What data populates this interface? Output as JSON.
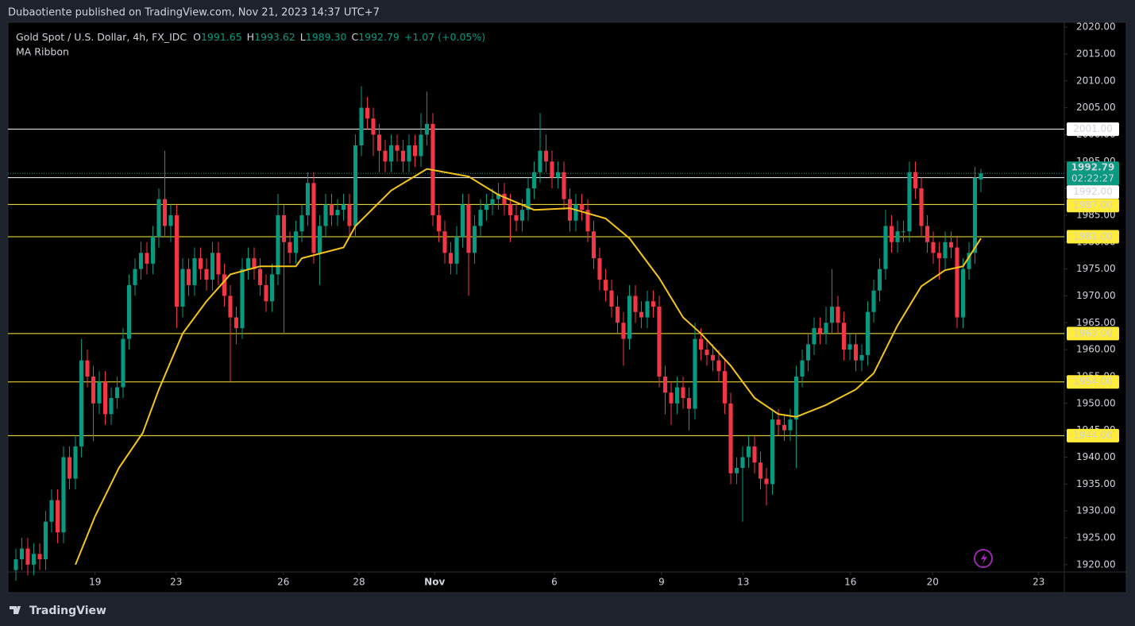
{
  "header": {
    "text": "Dubaotiente published on TradingView.com, Nov 21, 2023 14:37 UTC+7"
  },
  "footer": {
    "brand": "TradingView"
  },
  "chart_data": {
    "type": "candlestick",
    "legend": {
      "symbol": "Gold Spot / U.S. Dollar, 4h, FX_IDC",
      "fields": [
        {
          "label": "O",
          "value": "1991.65"
        },
        {
          "label": "H",
          "value": "1993.62"
        },
        {
          "label": "L",
          "value": "1989.30"
        },
        {
          "label": "C",
          "value": "1992.79"
        }
      ],
      "change": "+1.07 (+0.05%)"
    },
    "up_color": "#089981",
    "down_color": "#f23645",
    "open": [
      1919,
      1921,
      1923,
      1920,
      1922,
      1921,
      1928,
      1932,
      1926,
      1940,
      1936,
      1942,
      1958,
      1955,
      1950,
      1954,
      1948,
      1951,
      1953,
      1962,
      1972,
      1975,
      1978,
      1976,
      1981,
      1988,
      1983,
      1985,
      1968,
      1975,
      1972,
      1977,
      1975,
      1973,
      1978,
      1974,
      1970,
      1966,
      1964,
      1975,
      1977,
      1975,
      1972,
      1969,
      1974,
      1985,
      1980,
      1978,
      1982,
      1985,
      1991,
      1978,
      1983,
      1987,
      1985,
      1986,
      1987,
      1983,
      1998,
      2005,
      2003,
      2000,
      1997,
      1995,
      1998,
      1997,
      1995,
      1998,
      1996,
      2000,
      2002,
      1985,
      1982,
      1978,
      1976,
      1981,
      1987,
      1978,
      1983,
      1986,
      1987,
      1988,
      1989,
      1987,
      1985,
      1984,
      1986,
      1990,
      1993,
      1997,
      1995,
      1992,
      1993,
      1988,
      1984,
      1987,
      1986,
      1982,
      1977,
      1973,
      1971,
      1968,
      1965,
      1962,
      1970,
      1967,
      1966,
      1969,
      1968,
      1955,
      1952,
      1950,
      1953,
      1951,
      1949,
      1962,
      1960,
      1959,
      1958,
      1956,
      1950,
      1937,
      1938,
      1940,
      1942,
      1939,
      1936,
      1935,
      1947,
      1946,
      1945,
      1947,
      1955,
      1958,
      1961,
      1964,
      1963,
      1965,
      1968,
      1965,
      1960,
      1961,
      1958,
      1959,
      1967,
      1971,
      1975,
      1983,
      1980,
      1982,
      1982,
      1993,
      1990,
      1983,
      1980,
      1978,
      1977,
      1980,
      1979,
      1966,
      1975,
      1978,
      1991.65
    ],
    "high": [
      1923,
      1925,
      1925,
      1924,
      1924,
      1930,
      1934,
      1934,
      1942,
      1942,
      1944,
      1962,
      1960,
      1957,
      1956,
      1956,
      1953,
      1955,
      1964,
      1974,
      1977,
      1980,
      1980,
      1983,
      1990,
      1997,
      1987,
      1987,
      1977,
      1977,
      1979,
      1979,
      1977,
      1980,
      1980,
      1976,
      1972,
      1968,
      1977,
      1979,
      1979,
      1977,
      1974,
      1976,
      1989,
      1987,
      1982,
      1984,
      1987,
      1993,
      1993,
      1985,
      1989,
      1989,
      1988,
      1989,
      1989,
      2000,
      2009,
      2007,
      2005,
      2002,
      1999,
      2000,
      2000,
      1999,
      2000,
      2000,
      2004,
      2008,
      2004,
      1987,
      1984,
      1980,
      1983,
      1989,
      1989,
      1985,
      1988,
      1989,
      1990,
      1991,
      1991,
      1989,
      1987,
      1988,
      1992,
      1995,
      2004,
      2000,
      1997,
      1995,
      1995,
      1990,
      1989,
      1989,
      1988,
      1984,
      1979,
      1975,
      1973,
      1970,
      1967,
      1972,
      1972,
      1969,
      1971,
      1971,
      1970,
      1957,
      1954,
      1955,
      1955,
      1953,
      1965,
      1964,
      1962,
      1961,
      1960,
      1958,
      1952,
      1940,
      1942,
      1944,
      1944,
      1941,
      1938,
      1949,
      1949,
      1948,
      1949,
      1957,
      1960,
      1963,
      1966,
      1966,
      1968,
      1975,
      1970,
      1967,
      1963,
      1963,
      1961,
      1969,
      1973,
      1977,
      1986,
      1985,
      1984,
      1984,
      1995,
      1995,
      1992,
      1985,
      1982,
      1980,
      1982,
      1982,
      1981,
      1977,
      1980,
      1994,
      1993.62
    ],
    "low": [
      1917,
      1919,
      1918,
      1918,
      1919,
      1919,
      1926,
      1924,
      1924,
      1934,
      1934,
      1940,
      1953,
      1943,
      1948,
      1946,
      1946,
      1949,
      1951,
      1960,
      1970,
      1973,
      1974,
      1974,
      1979,
      1981,
      1980,
      1964,
      1966,
      1970,
      1970,
      1973,
      1971,
      1971,
      1972,
      1968,
      1954,
      1961,
      1962,
      1973,
      1973,
      1970,
      1967,
      1967,
      1972,
      1963,
      1976,
      1976,
      1980,
      1983,
      1976,
      1972,
      1981,
      1983,
      1983,
      1984,
      1981,
      1981,
      1996,
      2001,
      1996,
      1993,
      1993,
      1993,
      1995,
      1993,
      1993,
      1994,
      1994,
      1998,
      1983,
      1980,
      1976,
      1974,
      1974,
      1979,
      1970,
      1976,
      1981,
      1984,
      1985,
      1986,
      1985,
      1980,
      1982,
      1982,
      1984,
      1988,
      1991,
      1993,
      1990,
      1990,
      1986,
      1982,
      1982,
      1984,
      1980,
      1975,
      1971,
      1969,
      1966,
      1963,
      1957,
      1960,
      1965,
      1964,
      1964,
      1966,
      1953,
      1948,
      1946,
      1948,
      1949,
      1945,
      1947,
      1958,
      1957,
      1956,
      1954,
      1948,
      1935,
      1935,
      1928,
      1938,
      1937,
      1934,
      1931,
      1933,
      1944,
      1943,
      1943,
      1938,
      1953,
      1956,
      1959,
      1961,
      1961,
      1963,
      1963,
      1958,
      1958,
      1956,
      1956,
      1957,
      1965,
      1969,
      1973,
      1978,
      1978,
      1980,
      1980,
      1988,
      1981,
      1978,
      1976,
      1973,
      1975,
      1977,
      1964,
      1964,
      1973,
      1976,
      1989.3
    ],
    "close": [
      1921,
      1923,
      1920,
      1922,
      1921,
      1928,
      1932,
      1926,
      1940,
      1936,
      1942,
      1958,
      1955,
      1950,
      1954,
      1948,
      1951,
      1953,
      1962,
      1972,
      1975,
      1978,
      1976,
      1981,
      1988,
      1983,
      1985,
      1968,
      1975,
      1972,
      1977,
      1975,
      1973,
      1978,
      1974,
      1970,
      1966,
      1964,
      1975,
      1977,
      1975,
      1972,
      1969,
      1974,
      1985,
      1980,
      1978,
      1982,
      1985,
      1991,
      1978,
      1983,
      1987,
      1985,
      1986,
      1987,
      1983,
      1998,
      2005,
      2003,
      2000,
      1997,
      1995,
      1998,
      1997,
      1995,
      1998,
      1996,
      2000,
      2002,
      1985,
      1982,
      1978,
      1976,
      1981,
      1987,
      1978,
      1983,
      1986,
      1987,
      1988,
      1989,
      1987,
      1985,
      1984,
      1986,
      1990,
      1993,
      1997,
      1995,
      1992,
      1993,
      1988,
      1984,
      1987,
      1986,
      1982,
      1977,
      1973,
      1971,
      1968,
      1965,
      1962,
      1970,
      1967,
      1966,
      1969,
      1968,
      1955,
      1952,
      1950,
      1953,
      1951,
      1949,
      1962,
      1960,
      1959,
      1958,
      1956,
      1950,
      1937,
      1938,
      1940,
      1942,
      1939,
      1936,
      1935,
      1947,
      1946,
      1945,
      1947,
      1955,
      1958,
      1961,
      1964,
      1963,
      1965,
      1968,
      1965,
      1960,
      1961,
      1958,
      1959,
      1967,
      1971,
      1975,
      1983,
      1980,
      1982,
      1982,
      1993,
      1990,
      1983,
      1980,
      1978,
      1977,
      1980,
      1979,
      1966,
      1975,
      1978,
      1992,
      1992.79
    ],
    "series": [
      {
        "name": "MA Ribbon",
        "color": "#f5c518",
        "x": [
          10,
          13.3,
          17.3,
          21.3,
          24,
          28,
          32,
          36,
          41,
          47,
          48,
          55,
          57,
          63,
          69,
          76,
          81,
          87,
          93,
          99,
          103,
          108,
          112,
          115,
          120,
          124,
          128,
          131,
          136,
          141,
          144,
          148,
          152,
          156,
          159,
          162
        ],
        "values": [
          1920,
          1929,
          1938,
          1944.5,
          1952.6,
          1963,
          1969,
          1974,
          1975.5,
          1975.5,
          1977,
          1979,
          1983,
          1989.6,
          1993.6,
          1992.2,
          1988.8,
          1986,
          1986.3,
          1984.4,
          1980.7,
          1973.3,
          1966,
          1963,
          1957,
          1951,
          1948,
          1947.5,
          1949.7,
          1952.6,
          1955.6,
          1964.5,
          1971.8,
          1974.8,
          1975.5,
          1980.7
        ]
      }
    ],
    "current": {
      "value": 1992.79,
      "label": "1992.79",
      "countdown": "02:22:27",
      "color": "#089981"
    },
    "levels": [
      {
        "value": 2001,
        "label": "2001.00",
        "color": "#ffffff"
      },
      {
        "value": 1992,
        "label": "1992.00",
        "color": "#ffffff"
      },
      {
        "value": 1987,
        "label": "1987.00",
        "color": "#ffeb3b"
      },
      {
        "value": 1981,
        "label": "1981.00",
        "color": "#ffeb3b"
      },
      {
        "value": 1963,
        "label": "1963.00",
        "color": "#ffeb3b"
      },
      {
        "value": 1954,
        "label": "1954.00",
        "color": "#ffeb3b"
      },
      {
        "value": 1944,
        "label": "1944.00",
        "color": "#ffeb3b"
      }
    ],
    "xlim": [
      -1.33,
      176
    ],
    "xticks": [
      {
        "value": 13.3,
        "label": "19"
      },
      {
        "value": 26.9,
        "label": "23"
      },
      {
        "value": 44.9,
        "label": "26"
      },
      {
        "value": 57.6,
        "label": "28"
      },
      {
        "value": 70.3,
        "label": "Nov"
      },
      {
        "value": 90.4,
        "label": "6"
      },
      {
        "value": 108.4,
        "label": "9"
      },
      {
        "value": 122.1,
        "label": "13"
      },
      {
        "value": 140.1,
        "label": "16"
      },
      {
        "value": 153.9,
        "label": "20"
      },
      {
        "value": 171.7,
        "label": "23"
      }
    ],
    "ylim": [
      1914.8,
      2020.9
    ],
    "yticks": [
      {
        "value": 1920,
        "label": "1920.00"
      },
      {
        "value": 1925,
        "label": "1925.00"
      },
      {
        "value": 1930,
        "label": "1930.00"
      },
      {
        "value": 1935,
        "label": "1935.00"
      },
      {
        "value": 1940,
        "label": "1940.00"
      },
      {
        "value": 1945,
        "label": "1945.00"
      },
      {
        "value": 1950,
        "label": "1950.00"
      },
      {
        "value": 1955,
        "label": "1955.00"
      },
      {
        "value": 1960,
        "label": "1960.00"
      },
      {
        "value": 1965,
        "label": "1965.00"
      },
      {
        "value": 1970,
        "label": "1970.00"
      },
      {
        "value": 1975,
        "label": "1975.00"
      },
      {
        "value": 1980,
        "label": "1980.00"
      },
      {
        "value": 1985,
        "label": "1985.00"
      },
      {
        "value": 1990,
        "label": "1990.00"
      },
      {
        "value": 1995,
        "label": "1995.00"
      },
      {
        "value": 2000,
        "label": "2000.00"
      },
      {
        "value": 2005,
        "label": "2005.00"
      },
      {
        "value": 2010,
        "label": "2010.00"
      },
      {
        "value": 2015,
        "label": "2015.00"
      },
      {
        "value": 2020,
        "label": "2020.00"
      }
    ],
    "grid": false
  }
}
